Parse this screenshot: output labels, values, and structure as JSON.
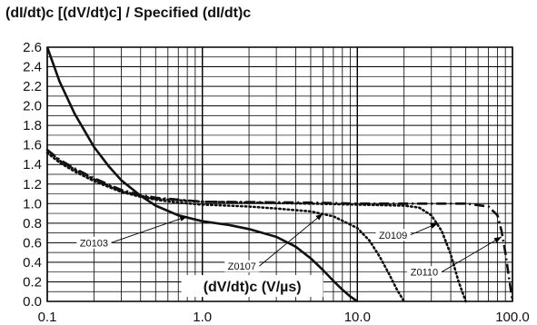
{
  "chart_data": {
    "type": "line",
    "title": "(dI/dt)c [(dV/dt)c] / Specified (dI/dt)c",
    "xlabel": "(dV/dt)c (V/µs)",
    "ylabel": "",
    "x_scale": "log",
    "xlim": [
      0.1,
      100
    ],
    "ylim": [
      0,
      2.6
    ],
    "x_ticks": [
      "0.1",
      "1.0",
      "10.0",
      "100.0"
    ],
    "y_ticks": [
      "0.0",
      "0.2",
      "0.4",
      "0.6",
      "0.8",
      "1.0",
      "1.2",
      "1.4",
      "1.6",
      "1.8",
      "2.0",
      "2.2",
      "2.4",
      "2.6"
    ],
    "grid": true,
    "series": [
      {
        "name": "Z0103",
        "style": "solid",
        "x": [
          0.1,
          0.12,
          0.15,
          0.2,
          0.25,
          0.3,
          0.4,
          0.5,
          0.7,
          1.0,
          1.5,
          2.0,
          3.0,
          4.0,
          5.0,
          6.0,
          7.0,
          8.0,
          9.0,
          10.0
        ],
        "y": [
          2.6,
          2.25,
          1.92,
          1.58,
          1.38,
          1.24,
          1.08,
          0.98,
          0.88,
          0.82,
          0.78,
          0.74,
          0.66,
          0.56,
          0.44,
          0.32,
          0.21,
          0.12,
          0.05,
          0.0
        ]
      },
      {
        "name": "Z0107",
        "style": "dotted",
        "x": [
          0.1,
          0.12,
          0.15,
          0.2,
          0.3,
          0.4,
          0.5,
          0.7,
          1.0,
          2.0,
          3.0,
          5.0,
          7.0,
          10.0,
          12.0,
          14.0,
          16.0,
          18.0,
          20.0
        ],
        "y": [
          1.52,
          1.42,
          1.33,
          1.23,
          1.12,
          1.07,
          1.04,
          1.01,
          0.99,
          0.97,
          0.95,
          0.92,
          0.87,
          0.75,
          0.62,
          0.45,
          0.28,
          0.12,
          0.0
        ]
      },
      {
        "name": "Z0109",
        "style": "dotted",
        "x": [
          0.1,
          0.12,
          0.15,
          0.2,
          0.3,
          0.4,
          0.5,
          1.0,
          5.0,
          10.0,
          20.0,
          25.0,
          30.0,
          35.0,
          40.0,
          45.0,
          50.0
        ],
        "y": [
          1.55,
          1.44,
          1.35,
          1.25,
          1.13,
          1.08,
          1.05,
          1.02,
          1.0,
          0.99,
          0.98,
          0.96,
          0.88,
          0.72,
          0.48,
          0.2,
          0.0
        ]
      },
      {
        "name": "Z0110",
        "style": "dashdot",
        "x": [
          0.1,
          0.12,
          0.15,
          0.2,
          0.3,
          0.4,
          0.5,
          1.0,
          5.0,
          10.0,
          30.0,
          50.0,
          70.0,
          80.0,
          85.0,
          90.0,
          95.0,
          100.0
        ],
        "y": [
          1.55,
          1.45,
          1.36,
          1.26,
          1.14,
          1.09,
          1.06,
          1.02,
          1.01,
          1.0,
          1.0,
          1.0,
          0.97,
          0.88,
          0.72,
          0.5,
          0.24,
          0.0
        ]
      }
    ],
    "annotations": [
      {
        "text": "Z0103",
        "series": "Z0103",
        "label_x": 0.2,
        "label_y": 0.6,
        "arrow_x": 0.8,
        "arrow_y": 0.87
      },
      {
        "text": "Z0107",
        "series": "Z0107",
        "label_x": 1.8,
        "label_y": 0.36,
        "arrow_x": 6.0,
        "arrow_y": 0.9
      },
      {
        "text": "Z0109",
        "series": "Z0109",
        "label_x": 17.0,
        "label_y": 0.68,
        "arrow_x": 33.0,
        "arrow_y": 0.8
      },
      {
        "text": "Z0110",
        "series": "Z0110",
        "label_x": 27.0,
        "label_y": 0.3,
        "arrow_x": 85.0,
        "arrow_y": 0.66
      }
    ]
  }
}
